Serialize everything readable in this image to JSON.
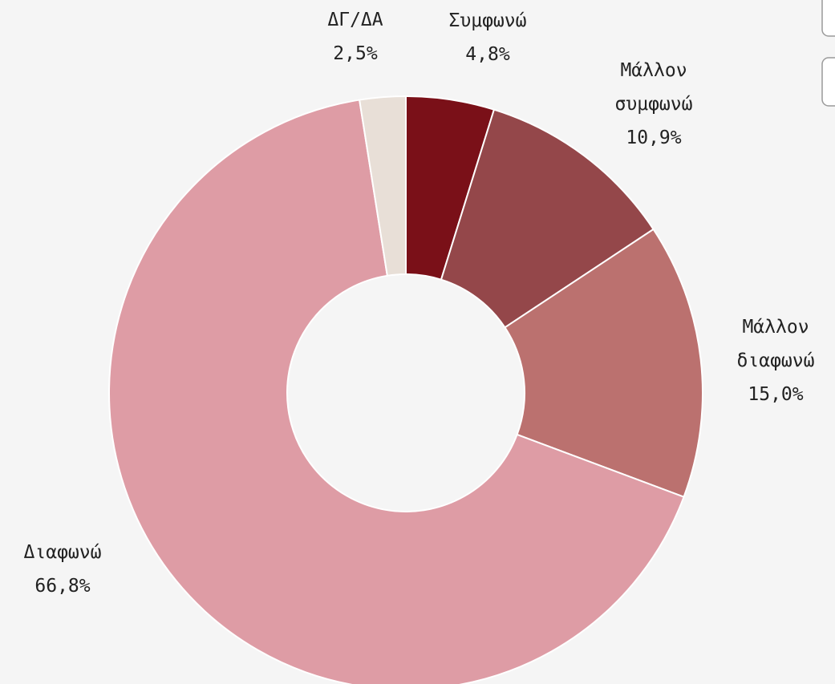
{
  "chart_data": {
    "type": "donut",
    "categories": [
      "Συμφωνώ",
      "Μάλλον συμφωνώ",
      "Μάλλον διαφωνώ",
      "Διαφωνώ",
      "ΔΓ/ΔΑ"
    ],
    "values": [
      4.8,
      10.9,
      15.0,
      66.8,
      2.5
    ],
    "value_labels": [
      "4,8%",
      "10,9%",
      "15,0%",
      "66,8%",
      "2,5%"
    ],
    "colors": [
      "#7a1018",
      "#94474a",
      "#bb716f",
      "#de9ca5",
      "#e8dfd7"
    ]
  }
}
